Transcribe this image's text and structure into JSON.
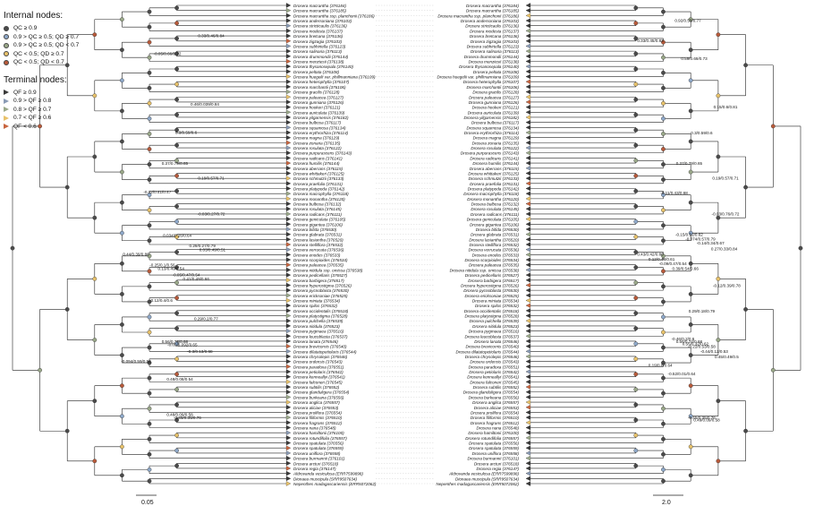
{
  "legend": {
    "internal_title": "Internal nodes:",
    "internal": [
      {
        "label": "QC ≥ 0.9",
        "color": "#4a4a4a"
      },
      {
        "label": "0.9 > QC ≥ 0.5; QD ≥ 0.7",
        "color": "#8ea8c9"
      },
      {
        "label": "0.9 > QC ≥ 0.5; QD < 0.7",
        "color": "#9aa889"
      },
      {
        "label": "QC < 0.5; QD ≥ 0.7",
        "color": "#e8c26a"
      },
      {
        "label": "QC < 0.5; QD < 0.7",
        "color": "#b85a3a"
      }
    ],
    "terminal_title": "Terminal nodes:",
    "terminal": [
      {
        "label": "QF ≥ 0.9",
        "color": "#3a3a3a"
      },
      {
        "label": "0.9 > QF ≥ 0.8",
        "color": "#8a9bb5"
      },
      {
        "label": "0.8 > QF ≥ 0.7",
        "color": "#9aa889"
      },
      {
        "label": "0.7 < QF ≥ 0.6",
        "color": "#e8c26a"
      },
      {
        "label": "QF < 0.6",
        "color": "#c8653f"
      }
    ]
  },
  "tips": [
    {
      "left": "Drosera macrantha (376184)",
      "right": "Drosera macrantha (376184)"
    },
    {
      "left": "Drosera macrantha (376185)",
      "right": "Drosera macrantha (376185)"
    },
    {
      "left": "Drosera macrantha ssp. planchonii (376186)",
      "right": "Drosera macrantha ssp. planchonii (376186)"
    },
    {
      "left": "Drosera andersoniana (376103)",
      "right": "Drosera andersoniana (376103)"
    },
    {
      "left": "Drosera stricticaulis (376136)",
      "right": "Drosera stricticaulis (376136)"
    },
    {
      "left": "Drosera modesta (376137)",
      "right": "Drosera modesta (376137)"
    },
    {
      "left": "Drosera bretcana (376136)",
      "right": "Drosera bretcana (376136)"
    },
    {
      "left": "Drosera zigzagia (376103)",
      "right": "Drosera zigzagia (376103)"
    },
    {
      "left": "Drosera subhirtella (376123)",
      "right": "Drosera subhirtella (376123)"
    },
    {
      "left": "Drosera salinaria (376113)",
      "right": "Drosera salinaria (376113)"
    },
    {
      "left": "Drosera drummondii (376144)",
      "right": "Drosera drummondii (376144)"
    },
    {
      "left": "Drosera menziesii (376138)",
      "right": "Drosera menziesii (376138)"
    },
    {
      "left": "Drosera thysanosepala (376140)",
      "right": "Drosera thysanosepala (376140)"
    },
    {
      "left": "Drosera peltata (376108)",
      "right": "Drosera peltata (376108)"
    },
    {
      "left": "Drosera huegelii var. phillmanniana (376109)",
      "right": "Drosera huegelii var. phillmanniana (376109)"
    },
    {
      "left": "Drosera heterophylla (376107)",
      "right": "Drosera heterophylla (376107)"
    },
    {
      "left": "Drosera marchantii (376106)",
      "right": "Drosera marchantii (376106)"
    },
    {
      "left": "Drosera gracilis (376128)",
      "right": "Drosera gracilis (376128)"
    },
    {
      "left": "Drosera paleacea (376127)",
      "right": "Drosera paleacea (376127)"
    },
    {
      "left": "Drosera gunniana (376126)",
      "right": "Drosera gunniana (376126)"
    },
    {
      "left": "Drosera hookeri (376121)",
      "right": "Drosera hookeri (376121)"
    },
    {
      "left": "Drosera auriculata (376139)",
      "right": "Drosera auriculata (376139)"
    },
    {
      "left": "Drosera yilgarnensis (376182)",
      "right": "Drosera yilgarnensis (376182)"
    },
    {
      "left": "Drosera bulbosa (376117)",
      "right": "Drosera bulbosa (376117)"
    },
    {
      "left": "Drosera squamosa (376134)",
      "right": "Drosera squamosa (376134)"
    },
    {
      "left": "Drosera erythrorhiza (376114)",
      "right": "Drosera erythrorhiza (376114)"
    },
    {
      "left": "Drosera magna (376129)",
      "right": "Drosera magna (376129)"
    },
    {
      "left": "Drosera zonaria (376135)",
      "right": "Drosera zonaria (376135)"
    },
    {
      "left": "Drosera rosulata (376122)",
      "right": "Drosera rosulata (376122)"
    },
    {
      "left": "Drosera purpurascens (376143)",
      "right": "Drosera purpurascens (376143)"
    },
    {
      "left": "Drosera radicans (376141)",
      "right": "Drosera radicans (376141)"
    },
    {
      "left": "Drosera humilis (376144)",
      "right": "Drosera humilis (376144)"
    },
    {
      "left": "Drosera aberrans (376115)",
      "right": "Drosera aberrans (376115)"
    },
    {
      "left": "Drosera whittakeri (376125)",
      "right": "Drosera whittakeri (376125)"
    },
    {
      "left": "Drosera schmutzii (376133)",
      "right": "Drosera schmutzii (376133)"
    },
    {
      "left": "Drosera praefolia (376131)",
      "right": "Drosera praefolia (376131)"
    },
    {
      "left": "Drosera platypoda (376142)",
      "right": "Drosera platypoda (376142)"
    },
    {
      "left": "Drosera macrophylla (376118)",
      "right": "Drosera macrophylla (376118)"
    },
    {
      "left": "Drosera monantha (376120)",
      "right": "Drosera monantha (376120)"
    },
    {
      "left": "Drosera bulbosa (376132)",
      "right": "Drosera bulbosa (376132)"
    },
    {
      "left": "Drosera rosulata (376145)",
      "right": "Drosera rosulata (376145)"
    },
    {
      "left": "Drosera radicans (376111)",
      "right": "Drosera radicans (376111)"
    },
    {
      "left": "Drosera geniculata (376105)",
      "right": "Drosera geniculata (376105)"
    },
    {
      "left": "Drosera gigantea (376106)",
      "right": "Drosera gigantea (376106)"
    },
    {
      "left": "Drosera bifida (376530)",
      "right": "Drosera bifida (376530)"
    },
    {
      "left": "Drosera glabrata (376531)",
      "right": "Drosera glabrata (376531)"
    },
    {
      "left": "Drosera lasiantha (376520)",
      "right": "Drosera lasiantha (376520)"
    },
    {
      "left": "Drosera stelliflora (376532)",
      "right": "Drosera stelliflora (376532)"
    },
    {
      "left": "Drosera verrucata (376536)",
      "right": "Drosera verrucata (376536)"
    },
    {
      "left": "Drosera enodes (376533)",
      "right": "Drosera enodes (376533)"
    },
    {
      "left": "Drosera scorpioides (376534)",
      "right": "Drosera scorpioides (376534)"
    },
    {
      "left": "Drosera paleacea (376535)",
      "right": "Drosera paleacea (376535)"
    },
    {
      "left": "Drosera nitidula ssp. omissa (376538)",
      "right": "Drosera nitidula ssp. omissa (376538)"
    },
    {
      "left": "Drosera pedicellaris (376527)",
      "right": "Drosera pedicellaris (376527)"
    },
    {
      "left": "Drosera barbigera (376517)",
      "right": "Drosera barbigera (376517)"
    },
    {
      "left": "Drosera hyperostigma (376526)",
      "right": "Drosera hyperostigma (376526)"
    },
    {
      "left": "Drosera pycnoblasta (376530)",
      "right": "Drosera pycnoblasta (376530)"
    },
    {
      "left": "Drosera ericksoniae (376525)",
      "right": "Drosera ericksoniae (376525)"
    },
    {
      "left": "Drosera miniata (376534)",
      "right": "Drosera miniata (376534)"
    },
    {
      "left": "Drosera spilos (376532)",
      "right": "Drosera spilos (376532)"
    },
    {
      "left": "Drosera occidentalis (376518)",
      "right": "Drosera occidentalis (376518)"
    },
    {
      "left": "Drosera platystigma (376528)",
      "right": "Drosera platystigma (376528)"
    },
    {
      "left": "Drosera pulchella (376539)",
      "right": "Drosera pulchella (376539)"
    },
    {
      "left": "Drosera nitidula (376523)",
      "right": "Drosera nitidula (376523)"
    },
    {
      "left": "Drosera pygmaea (376516)",
      "right": "Drosera pygmaea (376516)"
    },
    {
      "left": "Drosera leucoblasta (376537)",
      "right": "Drosera leucoblasta (376537)"
    },
    {
      "left": "Drosera lanata (376546)",
      "right": "Drosera lanata (376546)"
    },
    {
      "left": "Drosera brevicornis (376540)",
      "right": "Drosera brevicornis (376540)"
    },
    {
      "left": "Drosera dilatatopetiolaris (376544)",
      "right": "Drosera dilatatopetiolaris (376544)"
    },
    {
      "left": "Drosera chrysolepis (376546)",
      "right": "Drosera chrysolepis (376546)"
    },
    {
      "left": "Drosera ordensis (376543)",
      "right": "Drosera ordensis (376543)"
    },
    {
      "left": "Drosera paradoxa (376551)",
      "right": "Drosera paradoxa (376551)"
    },
    {
      "left": "Drosera petiolaris (376542)",
      "right": "Drosera petiolaris (376542)"
    },
    {
      "left": "Drosera kenneallyi (376541)",
      "right": "Drosera kenneallyi (376541)"
    },
    {
      "left": "Drosera falconeri (376545)",
      "right": "Drosera falconeri (376545)"
    },
    {
      "left": "Drosera subtilis (376552)",
      "right": "Drosera subtilis (376552)"
    },
    {
      "left": "Drosera glanduligera (376554)",
      "right": "Drosera glanduligera (376554)"
    },
    {
      "left": "Drosera burkeana (376556)",
      "right": "Drosera burkeana (376556)"
    },
    {
      "left": "Drosera anglica (376557)",
      "right": "Drosera anglica (376557)"
    },
    {
      "left": "Drosera aliciae (376553)",
      "right": "Drosera aliciae (376553)"
    },
    {
      "left": "Drosera prolifera (376554)",
      "right": "Drosera prolifera (376554)"
    },
    {
      "left": "Drosera filiformis (376510)",
      "right": "Drosera filiformis (376510)"
    },
    {
      "left": "Drosera fragrans (376512)",
      "right": "Drosera fragrans (376512)"
    },
    {
      "left": "Drosera nana (376548)",
      "right": "Drosera nana (376548)"
    },
    {
      "left": "Drosera hamiltonii (376100)",
      "right": "Drosera hamiltonii (376100)"
    },
    {
      "left": "Drosera rotundifolia (376557)",
      "right": "Drosera rotundifolia (376557)"
    },
    {
      "left": "Drosera spatulata (376556)",
      "right": "Drosera spatulata (376556)"
    },
    {
      "left": "Drosera spatulata (376559)",
      "right": "Drosera spatulata (376559)"
    },
    {
      "left": "Drosera uniflora (376558)",
      "right": "Drosera uniflora (376558)"
    },
    {
      "left": "Drosera burmannii (376101)",
      "right": "Drosera burmannii (376101)"
    },
    {
      "left": "Drosera arcturi (376518)",
      "right": "Drosera arcturi (376518)"
    },
    {
      "left": "Drosera regia (376147)",
      "right": "Drosera regia (376147)"
    },
    {
      "left": "Aldrovanda vesiculosa (ERR7599898)",
      "right": "Aldrovanda vesiculosa (ERR7599898)"
    },
    {
      "left": "Dionaea muscipula (SRR9507634)",
      "right": "Dionaea muscipula (SRR9507634)"
    },
    {
      "left": "Nepenthes madagascariensis (ERR5072062)",
      "right": "Nepenthes madagascariensis (ERR5072062)"
    }
  ],
  "left_node_labels": [
    {
      "tip": 10,
      "text": "-0.05/0.66/0.72"
    },
    {
      "tip": 6.5,
      "text": "0.33/0.46/0.84"
    },
    {
      "tip": 20,
      "text": "0.46/0.039/0.84"
    },
    {
      "tip": 25.5,
      "text": "0.3/0.59/0.6"
    },
    {
      "tip": 31.6,
      "text": "0.37/0.79/0.65"
    },
    {
      "tip": 34.5,
      "text": "0.19/0.57/0.71"
    },
    {
      "tip": 37.2,
      "text": "-0.12/0.41/0.47"
    },
    {
      "tip": 41.5,
      "text": "-0.03/0.27/0.72"
    },
    {
      "tip": 47.8,
      "text": "0.29/0.27/0.79"
    },
    {
      "tip": 45.8,
      "text": "0.034/0.26/0.64"
    },
    {
      "tip": 48.6,
      "text": "0.03/0.49/0.51"
    },
    {
      "tip": 49.5,
      "text": "0.44/0.39/0.86"
    },
    {
      "tip": 51.6,
      "text": "-0.25/0.1/0.56"
    },
    {
      "tip": 52.3,
      "text": "0.13/0.49/0.54"
    },
    {
      "tip": 53.5,
      "text": "-0.05/0.47/0.54"
    },
    {
      "tip": 54.3,
      "text": "0.41/0.49/0.66"
    },
    {
      "tip": 58.5,
      "text": "-0.12/0.4/0.6"
    },
    {
      "tip": 62.1,
      "text": "0.29/0.2/0.77"
    },
    {
      "tip": 67.2,
      "text": "-0.02/0.092/0.65"
    },
    {
      "tip": 68.6,
      "text": "-0.3/0.13/0.68"
    },
    {
      "tip": 70.5,
      "text": "-0.094/0.59/0.58"
    },
    {
      "tip": 74,
      "text": "0.48/0.08/0.54"
    },
    {
      "tip": 81,
      "text": "0.48/0.09/0.58"
    },
    {
      "tip": 66.6,
      "text": "0.56/0.73/0.68"
    },
    {
      "tip": 81.6,
      "text": "-0.45/0.35/0.76"
    }
  ],
  "right_node_labels": [
    {
      "tip": 3.5,
      "text": "0.92/0.53/0.77"
    },
    {
      "tip": 7.5,
      "text": "0.33/0.45/0.83"
    },
    {
      "tip": 11,
      "text": "0.59/0.69/0.73"
    },
    {
      "tip": 20.5,
      "text": "0.15/0.6/0.81"
    },
    {
      "tip": 25.6,
      "text": "0.3/0.59/0.6"
    },
    {
      "tip": 31.6,
      "text": "0.37/0.79/0.65"
    },
    {
      "tip": 34.5,
      "text": "0.19/0.57/0.71"
    },
    {
      "tip": 37.4,
      "text": "-0.11/0.43/0.68"
    },
    {
      "tip": 41.5,
      "text": "-0.03/0.76/0.72"
    },
    {
      "tip": 45.6,
      "text": "-0.15/0.52/0.62"
    },
    {
      "tip": 46.5,
      "text": "-0.074/0.57/0.79"
    },
    {
      "tip": 47.3,
      "text": "-0.14/0.34/0.67"
    },
    {
      "tip": 48.4,
      "text": "0.27/0.33/0.84"
    },
    {
      "tip": 49.5,
      "text": "0.43/0.42/0.86"
    },
    {
      "tip": 50.4,
      "text": "0.12/0.48/0.61"
    },
    {
      "tip": 51.3,
      "text": "-0.09/0.47/0.54"
    },
    {
      "tip": 52.3,
      "text": "0.39/0.54/0.66"
    },
    {
      "tip": 55.6,
      "text": "-0.12/0.39/0.78"
    },
    {
      "tip": 60.6,
      "text": "0.29/0.18/0.79"
    },
    {
      "tip": 66.1,
      "text": "-0.46/0.2/0.6"
    },
    {
      "tip": 67.1,
      "text": "0.55/0.32/0.62"
    },
    {
      "tip": 67.6,
      "text": "-0.22/0.53/0.58"
    },
    {
      "tip": 68.6,
      "text": "-0.44/0.12/0.53"
    },
    {
      "tip": 69.6,
      "text": "0.45/0.49/0.5"
    },
    {
      "tip": 71.3,
      "text": "0.19/0.6/0.64"
    },
    {
      "tip": 73,
      "text": "-0.52/0.01/0.64"
    },
    {
      "tip": 82,
      "text": "0.49/0.09/0.58"
    },
    {
      "tip": 66.6,
      "text": "0.56/0.74/0.68"
    },
    {
      "tip": 81.6,
      "text": "-0.45/0.35/0.76"
    }
  ],
  "scale_bars": {
    "left": "0.05",
    "right": "2.0"
  }
}
